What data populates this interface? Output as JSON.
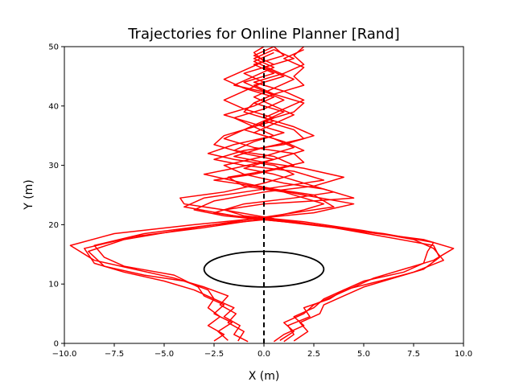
{
  "chart_data": {
    "type": "line",
    "title": "Trajectories for Online Planner [Rand]",
    "xlabel": "X (m)",
    "ylabel": "Y (m)",
    "xlim": [
      -10.0,
      10.0
    ],
    "ylim": [
      0,
      50
    ],
    "xticks": [
      -10.0,
      -7.5,
      -5.0,
      -2.5,
      0.0,
      2.5,
      5.0,
      7.5,
      10.0
    ],
    "xtick_labels": [
      "−10.0",
      "−7.5",
      "−5.0",
      "−2.5",
      "0.0",
      "2.5",
      "5.0",
      "7.5",
      "10.0"
    ],
    "yticks": [
      0,
      10,
      20,
      30,
      40,
      50
    ],
    "ytick_labels": [
      "0",
      "10",
      "20",
      "30",
      "40",
      "50"
    ],
    "grid": false,
    "series_color": "#ff0000",
    "reference_line": {
      "x": 0,
      "style": "dashed",
      "color": "#000000"
    },
    "obstacle": {
      "cx": 0,
      "cy": 12.5,
      "rx": 3.0,
      "ry": 3.0,
      "color": "#000000"
    },
    "series": [
      {
        "points": [
          [
            -1.3,
            0.4
          ],
          [
            -1.0,
            2.0
          ],
          [
            -1.8,
            3.5
          ],
          [
            -1.4,
            5.0
          ],
          [
            -2.2,
            6.5
          ],
          [
            -1.8,
            8.0
          ],
          [
            -3.0,
            9.5
          ],
          [
            -4.5,
            11.0
          ],
          [
            -6.5,
            12.5
          ],
          [
            -8.5,
            14.0
          ],
          [
            -9.7,
            16.5
          ],
          [
            -7.5,
            18.5
          ],
          [
            -3.5,
            20.0
          ],
          [
            -0.5,
            21.0
          ],
          [
            2.5,
            22.0
          ],
          [
            4.5,
            23.5
          ],
          [
            2.0,
            25.0
          ],
          [
            -0.5,
            26.5
          ],
          [
            -2.5,
            27.5
          ],
          [
            -0.5,
            28.5
          ],
          [
            1.5,
            30.0
          ],
          [
            0.5,
            31.5
          ],
          [
            -1.5,
            32.5
          ],
          [
            -0.5,
            34.0
          ],
          [
            1.0,
            35.5
          ],
          [
            -0.5,
            37.0
          ],
          [
            -2.0,
            38.5
          ],
          [
            -0.5,
            40.0
          ],
          [
            0.5,
            41.5
          ],
          [
            -1.0,
            43.0
          ],
          [
            -2.0,
            44.5
          ],
          [
            -1.0,
            46.0
          ],
          [
            0.0,
            47.5
          ],
          [
            -0.5,
            49.0
          ],
          [
            0.0,
            50.0
          ]
        ]
      },
      {
        "points": [
          [
            -2.5,
            0.4
          ],
          [
            -2.0,
            1.5
          ],
          [
            -2.8,
            3.0
          ],
          [
            -2.2,
            4.5
          ],
          [
            -2.8,
            6.0
          ],
          [
            -2.5,
            7.5
          ],
          [
            -3.5,
            9.0
          ],
          [
            -5.0,
            10.5
          ],
          [
            -7.0,
            12.0
          ],
          [
            -8.5,
            13.5
          ],
          [
            -9.0,
            16.0
          ],
          [
            -6.5,
            18.0
          ],
          [
            -3.0,
            19.5
          ],
          [
            0.0,
            21.0
          ],
          [
            2.0,
            22.5
          ],
          [
            3.0,
            23.5
          ],
          [
            1.0,
            25.5
          ],
          [
            -1.0,
            26.5
          ],
          [
            -1.8,
            28.0
          ],
          [
            0.0,
            29.0
          ],
          [
            2.0,
            30.5
          ],
          [
            1.5,
            32.0
          ],
          [
            -0.5,
            33.0
          ],
          [
            -2.0,
            34.5
          ],
          [
            -1.0,
            36.0
          ],
          [
            0.5,
            37.5
          ],
          [
            -1.0,
            39.0
          ],
          [
            -0.5,
            40.5
          ],
          [
            0.5,
            42.0
          ],
          [
            -1.5,
            43.5
          ],
          [
            -0.5,
            45.0
          ],
          [
            0.5,
            46.5
          ],
          [
            -0.5,
            48.0
          ],
          [
            0.5,
            49.5
          ]
        ]
      },
      {
        "points": [
          [
            -0.8,
            0.3
          ],
          [
            -1.5,
            1.5
          ],
          [
            -1.2,
            3.0
          ],
          [
            -2.0,
            4.5
          ],
          [
            -1.5,
            6.0
          ],
          [
            -2.5,
            7.5
          ],
          [
            -2.8,
            9.0
          ],
          [
            -4.0,
            10.5
          ],
          [
            -6.0,
            11.5
          ],
          [
            -8.0,
            13.0
          ],
          [
            -8.8,
            15.5
          ],
          [
            -7.0,
            17.5
          ],
          [
            -3.5,
            19.5
          ],
          [
            -0.5,
            21.0
          ],
          [
            1.5,
            22.0
          ],
          [
            3.5,
            23.0
          ],
          [
            2.5,
            25.0
          ],
          [
            0.5,
            26.0
          ],
          [
            -1.0,
            27.0
          ],
          [
            -3.0,
            28.5
          ],
          [
            -1.5,
            29.5
          ],
          [
            0.5,
            31.0
          ],
          [
            -1.0,
            32.0
          ],
          [
            -2.5,
            33.5
          ],
          [
            -2.0,
            35.0
          ],
          [
            -0.5,
            36.5
          ],
          [
            0.5,
            38.0
          ],
          [
            -1.0,
            39.5
          ],
          [
            -2.0,
            41.0
          ],
          [
            -1.0,
            42.5
          ],
          [
            0.0,
            44.0
          ],
          [
            -1.0,
            45.5
          ],
          [
            0.5,
            47.0
          ],
          [
            -0.5,
            48.5
          ],
          [
            0.5,
            50.0
          ]
        ]
      },
      {
        "points": [
          [
            -1.8,
            0.5
          ],
          [
            -2.3,
            2.0
          ],
          [
            -1.6,
            3.5
          ],
          [
            -2.5,
            5.0
          ],
          [
            -2.0,
            6.5
          ],
          [
            -3.0,
            8.0
          ],
          [
            -3.3,
            9.5
          ],
          [
            -4.5,
            11.5
          ],
          [
            -7.0,
            13.0
          ],
          [
            -8.0,
            14.5
          ],
          [
            -8.5,
            16.5
          ],
          [
            -6.0,
            18.5
          ],
          [
            -2.5,
            20.0
          ],
          [
            0.5,
            21.0
          ],
          [
            -2.0,
            22.5
          ],
          [
            -4.0,
            23.5
          ],
          [
            -4.2,
            24.5
          ],
          [
            -2.0,
            25.5
          ],
          [
            0.0,
            27.0
          ],
          [
            1.5,
            28.5
          ],
          [
            0.5,
            30.0
          ],
          [
            -1.5,
            31.0
          ],
          [
            -2.8,
            32.0
          ],
          [
            -1.5,
            33.5
          ],
          [
            0.5,
            35.0
          ],
          [
            -0.5,
            36.5
          ],
          [
            -1.5,
            38.0
          ],
          [
            0.0,
            39.5
          ],
          [
            1.0,
            41.0
          ],
          [
            0.0,
            42.5
          ],
          [
            -1.0,
            44.0
          ],
          [
            0.5,
            45.5
          ],
          [
            -0.5,
            47.0
          ],
          [
            1.0,
            48.5
          ],
          [
            0.5,
            50.0
          ]
        ]
      },
      {
        "points": [
          [
            0.8,
            0.5
          ],
          [
            1.5,
            2.0
          ],
          [
            1.0,
            3.5
          ],
          [
            2.0,
            5.0
          ],
          [
            2.5,
            6.5
          ],
          [
            3.5,
            8.0
          ],
          [
            4.5,
            9.5
          ],
          [
            5.5,
            11.0
          ],
          [
            7.0,
            12.5
          ],
          [
            8.5,
            14.0
          ],
          [
            9.5,
            16.0
          ],
          [
            8.0,
            17.5
          ],
          [
            4.5,
            19.0
          ],
          [
            1.5,
            20.5
          ],
          [
            -1.5,
            21.5
          ],
          [
            -4.0,
            23.0
          ],
          [
            -3.0,
            24.5
          ],
          [
            -1.0,
            25.5
          ],
          [
            1.0,
            26.5
          ],
          [
            3.0,
            27.5
          ],
          [
            1.5,
            29.0
          ],
          [
            -1.0,
            30.0
          ],
          [
            -2.5,
            31.0
          ],
          [
            -1.0,
            32.5
          ],
          [
            1.0,
            33.5
          ],
          [
            2.5,
            35.0
          ],
          [
            1.5,
            36.5
          ],
          [
            0.0,
            38.0
          ],
          [
            1.0,
            39.5
          ],
          [
            2.0,
            41.0
          ],
          [
            1.0,
            42.5
          ],
          [
            -0.5,
            44.0
          ],
          [
            1.0,
            45.5
          ],
          [
            2.0,
            47.0
          ],
          [
            1.5,
            48.5
          ],
          [
            2.0,
            50.0
          ]
        ]
      },
      {
        "points": [
          [
            1.5,
            0.4
          ],
          [
            2.2,
            2.0
          ],
          [
            1.8,
            3.5
          ],
          [
            2.8,
            5.0
          ],
          [
            3.0,
            6.5
          ],
          [
            4.0,
            8.0
          ],
          [
            5.0,
            9.5
          ],
          [
            6.5,
            11.0
          ],
          [
            8.0,
            12.5
          ],
          [
            8.8,
            14.5
          ],
          [
            8.5,
            16.5
          ],
          [
            6.0,
            18.0
          ],
          [
            3.5,
            19.5
          ],
          [
            1.0,
            20.5
          ],
          [
            -2.0,
            21.5
          ],
          [
            -3.5,
            22.5
          ],
          [
            -2.5,
            24.0
          ],
          [
            0.0,
            25.5
          ],
          [
            2.5,
            26.5
          ],
          [
            4.0,
            28.0
          ],
          [
            2.0,
            29.5
          ],
          [
            0.0,
            30.5
          ],
          [
            -1.5,
            31.5
          ],
          [
            0.0,
            33.0
          ],
          [
            2.0,
            34.5
          ],
          [
            1.5,
            36.0
          ],
          [
            0.0,
            37.5
          ],
          [
            1.5,
            39.0
          ],
          [
            2.0,
            40.5
          ],
          [
            0.5,
            42.0
          ],
          [
            -0.5,
            43.5
          ],
          [
            1.0,
            45.0
          ],
          [
            0.0,
            46.5
          ],
          [
            1.5,
            48.0
          ],
          [
            0.5,
            49.5
          ]
        ]
      },
      {
        "points": [
          [
            0.5,
            0.3
          ],
          [
            1.0,
            1.5
          ],
          [
            2.0,
            3.0
          ],
          [
            1.5,
            4.5
          ],
          [
            2.5,
            6.0
          ],
          [
            3.0,
            7.5
          ],
          [
            4.0,
            9.0
          ],
          [
            5.0,
            10.5
          ],
          [
            7.0,
            12.0
          ],
          [
            8.0,
            13.5
          ],
          [
            8.2,
            15.5
          ],
          [
            8.5,
            17.0
          ],
          [
            6.0,
            18.5
          ],
          [
            2.5,
            20.0
          ],
          [
            -0.5,
            21.0
          ],
          [
            -2.5,
            22.0
          ],
          [
            -1.0,
            23.5
          ],
          [
            1.5,
            24.5
          ],
          [
            3.5,
            25.5
          ],
          [
            2.0,
            27.0
          ],
          [
            0.5,
            28.5
          ],
          [
            -1.0,
            29.5
          ],
          [
            0.5,
            31.0
          ],
          [
            2.0,
            32.5
          ],
          [
            1.0,
            34.0
          ],
          [
            -0.5,
            35.5
          ],
          [
            0.5,
            37.0
          ],
          [
            1.5,
            38.5
          ],
          [
            0.5,
            40.0
          ],
          [
            -0.5,
            41.5
          ],
          [
            0.5,
            43.0
          ],
          [
            1.5,
            44.5
          ],
          [
            0.5,
            46.0
          ],
          [
            -0.5,
            47.5
          ],
          [
            0.5,
            49.0
          ]
        ]
      },
      {
        "points": [
          [
            1.0,
            0.3
          ],
          [
            1.5,
            1.5
          ],
          [
            1.2,
            3.0
          ],
          [
            2.3,
            4.5
          ],
          [
            2.0,
            6.0
          ],
          [
            3.3,
            7.5
          ],
          [
            4.0,
            9.0
          ],
          [
            5.8,
            10.5
          ],
          [
            7.5,
            12.0
          ],
          [
            9.0,
            14.0
          ],
          [
            8.5,
            16.0
          ],
          [
            7.5,
            17.5
          ],
          [
            5.0,
            19.0
          ],
          [
            2.0,
            20.5
          ],
          [
            -1.0,
            21.5
          ],
          [
            -2.0,
            22.5
          ],
          [
            0.0,
            23.5
          ],
          [
            2.5,
            24.0
          ],
          [
            4.5,
            24.5
          ],
          [
            3.0,
            26.0
          ],
          [
            1.0,
            27.0
          ],
          [
            -1.0,
            28.5
          ],
          [
            -2.0,
            30.0
          ],
          [
            0.0,
            31.5
          ],
          [
            1.5,
            33.0
          ],
          [
            0.5,
            34.5
          ],
          [
            -1.0,
            36.0
          ],
          [
            0.0,
            37.5
          ],
          [
            1.0,
            39.0
          ],
          [
            -0.5,
            40.5
          ],
          [
            0.5,
            42.0
          ],
          [
            2.0,
            43.5
          ],
          [
            1.5,
            45.0
          ],
          [
            2.0,
            46.5
          ],
          [
            1.0,
            48.0
          ],
          [
            2.0,
            49.5
          ]
        ]
      }
    ]
  }
}
